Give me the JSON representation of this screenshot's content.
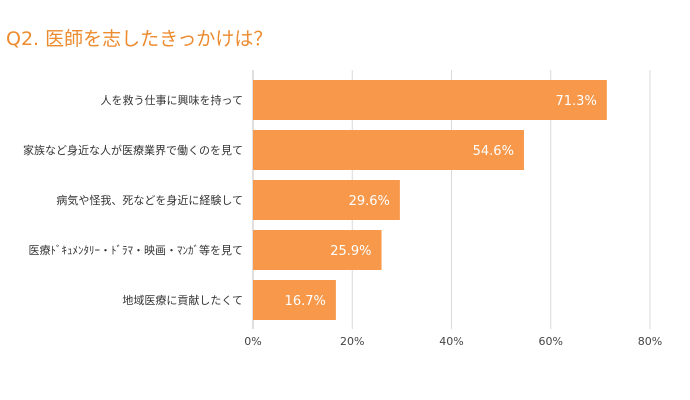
{
  "chart_data": {
    "type": "bar",
    "orientation": "horizontal",
    "title": "Q2. 医師を志したきっかけは？",
    "categories": [
      "人を救う仕事に興味を持って",
      "家族など身近な人が医療業界で働くのを見て",
      "病気や怪我、死などを身近に経験して",
      "医療ﾄﾞｷｭﾒﾝﾀﾘｰ・ﾄﾞﾗﾏ・映画・ﾏﾝｶﾞ等を見て",
      "地域医療に貢献したくて"
    ],
    "values": [
      71.3,
      54.6,
      29.6,
      25.9,
      16.7
    ],
    "value_labels": [
      "71.3%",
      "54.6%",
      "29.6%",
      "25.9%",
      "16.7%"
    ],
    "xlim": [
      0,
      80
    ],
    "xticks": [
      0,
      20,
      40,
      60,
      80
    ],
    "xtick_labels": [
      "0%",
      "20%",
      "40%",
      "60%",
      "80%"
    ],
    "grid": true,
    "bar_color": "#F7984A",
    "title_color": "#ED8B2F"
  }
}
